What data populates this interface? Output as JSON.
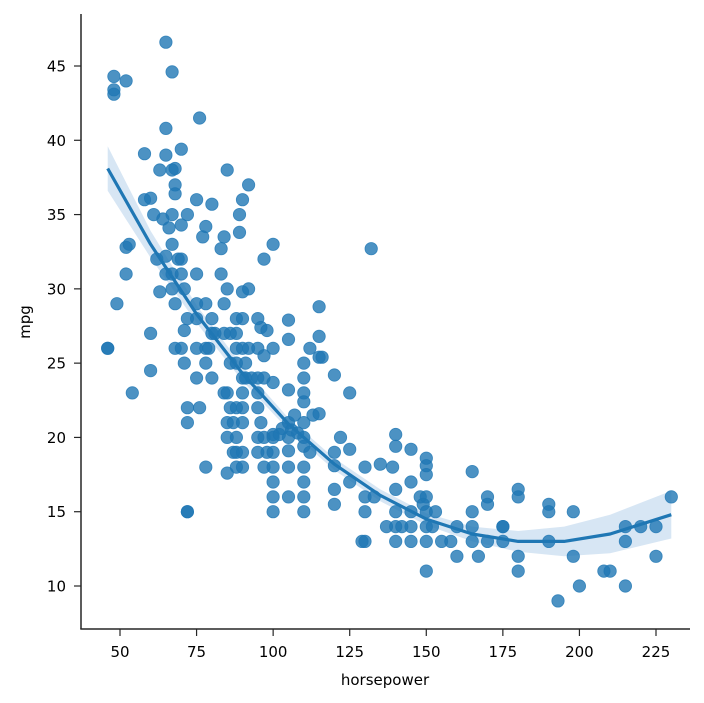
{
  "chart_data": {
    "type": "scatter",
    "title": "",
    "xlabel": "horsepower",
    "ylabel": "mpg",
    "xlim": [
      37,
      240
    ],
    "ylim": [
      7.2,
      48.5
    ],
    "xticks": [
      50,
      75,
      100,
      125,
      150,
      175,
      200,
      225
    ],
    "yticks": [
      10,
      15,
      20,
      25,
      30,
      35,
      40,
      45
    ],
    "grid": false,
    "legend": null,
    "colors": {
      "points": "#1f77b4",
      "line": "#1f77b4",
      "ci_band": "#c6dcef"
    },
    "fit": {
      "type": "polynomial regression (order 2) with 95% CI band",
      "x": [
        46,
        60,
        75,
        90,
        105,
        120,
        135,
        150,
        165,
        180,
        195,
        210,
        230
      ],
      "y": [
        38.1,
        33.0,
        28.3,
        24.3,
        20.9,
        18.2,
        16.1,
        14.5,
        13.5,
        13.0,
        13.0,
        13.5,
        14.8
      ],
      "ci_upper": [
        39.6,
        33.9,
        28.9,
        24.8,
        21.3,
        18.6,
        16.5,
        14.9,
        14.0,
        13.7,
        14.0,
        14.8,
        16.4
      ],
      "ci_lower": [
        36.6,
        32.1,
        27.7,
        23.8,
        20.5,
        17.8,
        15.7,
        14.1,
        13.0,
        12.3,
        12.0,
        12.2,
        13.2
      ]
    },
    "points": [
      [
        46,
        26
      ],
      [
        46,
        26
      ],
      [
        48,
        44.3
      ],
      [
        48,
        43.4
      ],
      [
        48,
        43.1
      ],
      [
        49,
        29
      ],
      [
        52,
        44
      ],
      [
        52,
        31
      ],
      [
        52,
        32.8
      ],
      [
        53,
        33
      ],
      [
        54,
        23
      ],
      [
        58,
        36
      ],
      [
        58,
        39.1
      ],
      [
        60,
        24.5
      ],
      [
        60,
        27
      ],
      [
        60,
        36.1
      ],
      [
        61,
        35
      ],
      [
        62,
        32
      ],
      [
        63,
        29.8
      ],
      [
        63,
        38
      ],
      [
        64,
        34.7
      ],
      [
        65,
        46.6
      ],
      [
        65,
        31
      ],
      [
        65,
        39
      ],
      [
        65,
        32.2
      ],
      [
        65,
        40.8
      ],
      [
        66,
        34.1
      ],
      [
        67,
        44.6
      ],
      [
        67,
        31
      ],
      [
        67,
        30
      ],
      [
        67,
        38
      ],
      [
        67,
        35
      ],
      [
        67,
        33
      ],
      [
        68,
        29
      ],
      [
        68,
        26
      ],
      [
        68,
        37
      ],
      [
        68,
        36.4
      ],
      [
        68,
        38.1
      ],
      [
        69,
        32
      ],
      [
        70,
        32
      ],
      [
        70,
        34.3
      ],
      [
        70,
        31
      ],
      [
        70,
        39.4
      ],
      [
        70,
        26
      ],
      [
        71,
        27.2
      ],
      [
        71,
        25
      ],
      [
        71,
        30
      ],
      [
        72,
        21
      ],
      [
        72,
        22
      ],
      [
        72,
        15
      ],
      [
        72,
        15
      ],
      [
        72,
        28
      ],
      [
        72,
        35
      ],
      [
        75,
        31
      ],
      [
        75,
        26
      ],
      [
        75,
        24
      ],
      [
        75,
        29
      ],
      [
        75,
        28
      ],
      [
        75,
        36
      ],
      [
        76,
        41.5
      ],
      [
        76,
        22
      ],
      [
        77,
        33.5
      ],
      [
        78,
        25
      ],
      [
        78,
        34.2
      ],
      [
        78,
        18
      ],
      [
        78,
        29
      ],
      [
        78,
        26
      ],
      [
        79,
        26
      ],
      [
        80,
        35.7
      ],
      [
        80,
        28
      ],
      [
        80,
        27
      ],
      [
        80,
        24
      ],
      [
        81,
        27
      ],
      [
        83,
        31
      ],
      [
        83,
        32.7
      ],
      [
        84,
        33.5
      ],
      [
        84,
        29
      ],
      [
        84,
        23
      ],
      [
        84,
        27
      ],
      [
        85,
        38
      ],
      [
        85,
        23
      ],
      [
        85,
        21
      ],
      [
        85,
        20
      ],
      [
        85,
        17.6
      ],
      [
        85,
        30
      ],
      [
        86,
        27
      ],
      [
        86,
        22
      ],
      [
        86,
        25
      ],
      [
        87,
        19
      ],
      [
        87,
        21
      ],
      [
        88,
        25
      ],
      [
        88,
        19
      ],
      [
        88,
        26
      ],
      [
        88,
        27
      ],
      [
        88,
        20
      ],
      [
        88,
        18
      ],
      [
        88,
        22
      ],
      [
        88,
        28
      ],
      [
        89,
        33.8
      ],
      [
        89,
        35
      ],
      [
        90,
        36
      ],
      [
        90,
        26
      ],
      [
        90,
        29.8
      ],
      [
        90,
        24
      ],
      [
        90,
        21
      ],
      [
        90,
        22
      ],
      [
        90,
        18
      ],
      [
        90,
        19
      ],
      [
        90,
        23
      ],
      [
        90,
        28
      ],
      [
        91,
        25
      ],
      [
        91,
        24
      ],
      [
        92,
        26
      ],
      [
        92,
        30
      ],
      [
        92,
        37
      ],
      [
        93,
        24
      ],
      [
        95,
        28
      ],
      [
        95,
        26
      ],
      [
        95,
        22
      ],
      [
        95,
        24
      ],
      [
        95,
        23
      ],
      [
        95,
        19
      ],
      [
        95,
        20
      ],
      [
        96,
        27.4
      ],
      [
        96,
        21
      ],
      [
        97,
        32
      ],
      [
        97,
        25.5
      ],
      [
        97,
        24
      ],
      [
        97,
        20
      ],
      [
        97,
        18
      ],
      [
        98,
        27.2
      ],
      [
        98,
        19
      ],
      [
        100,
        33
      ],
      [
        100,
        26
      ],
      [
        100,
        23.7
      ],
      [
        100,
        20.2
      ],
      [
        100,
        20
      ],
      [
        100,
        19
      ],
      [
        100,
        18
      ],
      [
        100,
        17
      ],
      [
        100,
        16
      ],
      [
        100,
        15
      ],
      [
        102,
        20.2
      ],
      [
        103,
        20.6
      ],
      [
        105,
        26.6
      ],
      [
        105,
        27.9
      ],
      [
        105,
        23.2
      ],
      [
        105,
        21
      ],
      [
        105,
        20
      ],
      [
        105,
        19.1
      ],
      [
        105,
        18
      ],
      [
        105,
        16
      ],
      [
        106,
        20.5
      ],
      [
        107,
        21.5
      ],
      [
        108,
        20.3
      ],
      [
        110,
        25
      ],
      [
        110,
        24
      ],
      [
        110,
        23
      ],
      [
        110,
        22.4
      ],
      [
        110,
        21
      ],
      [
        110,
        20
      ],
      [
        110,
        19.4
      ],
      [
        110,
        18
      ],
      [
        110,
        17
      ],
      [
        110,
        16
      ],
      [
        110,
        15
      ],
      [
        112,
        19
      ],
      [
        112,
        26
      ],
      [
        113,
        21.5
      ],
      [
        115,
        28.8
      ],
      [
        115,
        26.8
      ],
      [
        115,
        25.4
      ],
      [
        115,
        21.6
      ],
      [
        116,
        25.4
      ],
      [
        120,
        24.2
      ],
      [
        120,
        19
      ],
      [
        120,
        18.1
      ],
      [
        120,
        16.5
      ],
      [
        120,
        15.5
      ],
      [
        122,
        20
      ],
      [
        125,
        23
      ],
      [
        125,
        19.2
      ],
      [
        125,
        17
      ],
      [
        129,
        13
      ],
      [
        130,
        18
      ],
      [
        130,
        16
      ],
      [
        130,
        15
      ],
      [
        130,
        13
      ],
      [
        132,
        32.7
      ],
      [
        133,
        16
      ],
      [
        135,
        18.2
      ],
      [
        137,
        14
      ],
      [
        139,
        18
      ],
      [
        140,
        20.2
      ],
      [
        140,
        19.4
      ],
      [
        140,
        16.5
      ],
      [
        140,
        15
      ],
      [
        140,
        14
      ],
      [
        140,
        13
      ],
      [
        142,
        14
      ],
      [
        145,
        19.2
      ],
      [
        145,
        17
      ],
      [
        145,
        15
      ],
      [
        145,
        14
      ],
      [
        145,
        13
      ],
      [
        148,
        16
      ],
      [
        149,
        15.5
      ],
      [
        150,
        18.6
      ],
      [
        150,
        18.1
      ],
      [
        150,
        17.5
      ],
      [
        150,
        16
      ],
      [
        150,
        15
      ],
      [
        150,
        14
      ],
      [
        150,
        13
      ],
      [
        150,
        11
      ],
      [
        152,
        14
      ],
      [
        153,
        15
      ],
      [
        155,
        13
      ],
      [
        158,
        13
      ],
      [
        160,
        14
      ],
      [
        160,
        12
      ],
      [
        165,
        17.7
      ],
      [
        165,
        15
      ],
      [
        165,
        14
      ],
      [
        165,
        13
      ],
      [
        167,
        12
      ],
      [
        170,
        16
      ],
      [
        170,
        15.5
      ],
      [
        170,
        13
      ],
      [
        175,
        14
      ],
      [
        175,
        14
      ],
      [
        175,
        13
      ],
      [
        180,
        16.5
      ],
      [
        180,
        16
      ],
      [
        180,
        12
      ],
      [
        180,
        11
      ],
      [
        190,
        15.5
      ],
      [
        190,
        15
      ],
      [
        190,
        13
      ],
      [
        193,
        9
      ],
      [
        198,
        15
      ],
      [
        198,
        12
      ],
      [
        200,
        10
      ],
      [
        208,
        11
      ],
      [
        210,
        11
      ],
      [
        215,
        14
      ],
      [
        215,
        13
      ],
      [
        215,
        10
      ],
      [
        220,
        14
      ],
      [
        225,
        14
      ],
      [
        225,
        12
      ],
      [
        230,
        16
      ]
    ]
  }
}
